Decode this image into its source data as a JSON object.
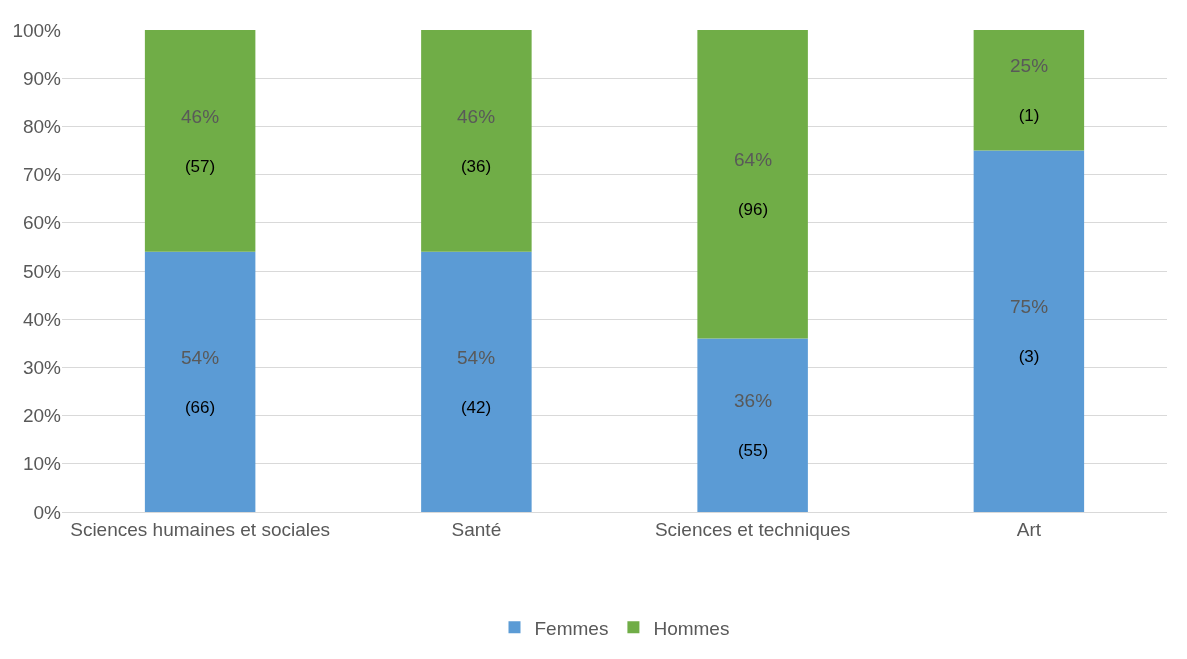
{
  "chart_data": {
    "type": "bar",
    "stacked": true,
    "categories": [
      "Sciences humaines et sociales",
      "Santé",
      "Sciences et techniques",
      "Art"
    ],
    "series": [
      {
        "name": "Femmes",
        "color": "#5b9bd5",
        "values": [
          54,
          54,
          36,
          75
        ],
        "value_labels": [
          "54%\n(66)",
          "54%\n(42)",
          "36%\n(55)",
          "75%\n(3)"
        ]
      },
      {
        "name": "Hommes",
        "color": "#70ad47",
        "values": [
          46,
          46,
          64,
          25
        ],
        "value_labels": [
          "46%\n(57)",
          "46%\n(36)",
          "64%\n(96)",
          "25%\n(1)"
        ]
      }
    ],
    "ylim": [
      0,
      100
    ],
    "yticks": [
      {
        "value": 0,
        "label": "0%"
      },
      {
        "value": 10,
        "label": "10%"
      },
      {
        "value": 20,
        "label": "20%"
      },
      {
        "value": 30,
        "label": "30%"
      },
      {
        "value": 40,
        "label": "40%"
      },
      {
        "value": 50,
        "label": "50%"
      },
      {
        "value": 60,
        "label": "60%"
      },
      {
        "value": 70,
        "label": "70%"
      },
      {
        "value": 80,
        "label": "80%"
      },
      {
        "value": 90,
        "label": "90%"
      },
      {
        "value": 100,
        "label": "100%"
      }
    ],
    "grid": "y",
    "legend": "bottom"
  }
}
